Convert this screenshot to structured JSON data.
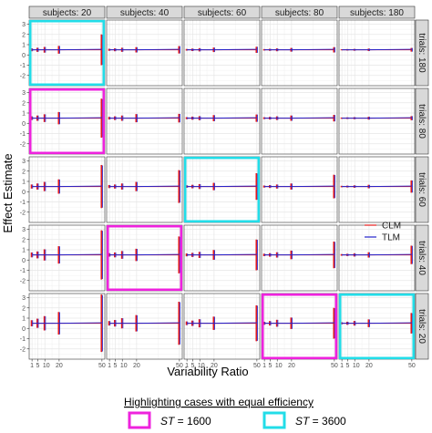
{
  "chart_data": {
    "type": "line",
    "panel_layout": "facet grid",
    "column_facets": [
      "subjects: 20",
      "subjects: 40",
      "subjects: 60",
      "subjects: 80",
      "subjects: 180"
    ],
    "row_facets": [
      "trials: 180",
      "trials: 80",
      "trials: 60",
      "trials: 40",
      "trials: 20"
    ],
    "xlabel": "Variability Ratio",
    "ylabel": "Effect Estimate",
    "x_ticks": [
      1,
      5,
      10,
      20,
      50
    ],
    "y_ticks": [
      -2,
      -1,
      0,
      1,
      2,
      3
    ],
    "xlim": [
      -1,
      52
    ],
    "ylim": [
      -3,
      3.4
    ],
    "x": [
      1,
      5,
      10,
      20,
      50
    ],
    "grid": true,
    "estimate": 0.5,
    "series": [
      {
        "name": "CLM",
        "color": "#e41a1c"
      },
      {
        "name": "TLM",
        "color": "#2222cc"
      }
    ],
    "interval_halfwidths": {
      "trials: 180": [
        [
          0.14,
          0.2,
          0.28,
          0.38,
          1.5
        ],
        [
          0.1,
          0.14,
          0.2,
          0.26,
          0.36
        ],
        [
          0.08,
          0.12,
          0.16,
          0.22,
          0.3
        ],
        [
          0.07,
          0.1,
          0.14,
          0.18,
          0.26
        ],
        [
          0.05,
          0.07,
          0.09,
          0.12,
          0.18
        ]
      ],
      "trials: 80": [
        [
          0.18,
          0.26,
          0.38,
          0.6,
          1.9
        ],
        [
          0.13,
          0.18,
          0.26,
          0.4,
          0.42
        ],
        [
          0.1,
          0.15,
          0.2,
          0.3,
          0.36
        ],
        [
          0.09,
          0.13,
          0.18,
          0.26,
          0.32
        ],
        [
          0.06,
          0.08,
          0.1,
          0.14,
          0.2
        ]
      ],
      "trials: 60": [
        [
          0.2,
          0.3,
          0.45,
          0.7,
          2.1
        ],
        [
          0.15,
          0.2,
          0.3,
          0.45,
          1.6
        ],
        [
          0.12,
          0.17,
          0.24,
          0.36,
          1.3
        ],
        [
          0.1,
          0.14,
          0.2,
          0.3,
          1.15
        ],
        [
          0.07,
          0.09,
          0.12,
          0.17,
          0.6
        ]
      ],
      "trials: 40": [
        [
          0.24,
          0.34,
          0.55,
          0.85,
          2.4
        ],
        [
          0.17,
          0.24,
          0.38,
          0.6,
          1.8
        ],
        [
          0.14,
          0.2,
          0.3,
          0.48,
          1.5
        ],
        [
          0.12,
          0.17,
          0.26,
          0.42,
          1.3
        ],
        [
          0.08,
          0.11,
          0.16,
          0.26,
          0.9
        ]
      ],
      "trials: 20": [
        [
          0.3,
          0.45,
          0.7,
          1.1,
          2.8
        ],
        [
          0.22,
          0.32,
          0.5,
          0.8,
          2.1
        ],
        [
          0.18,
          0.26,
          0.4,
          0.65,
          1.75
        ],
        [
          0.15,
          0.22,
          0.34,
          0.56,
          1.5
        ],
        [
          0.1,
          0.15,
          0.23,
          0.38,
          1.0
        ]
      ]
    },
    "highlights": [
      {
        "row": 0,
        "col": 0,
        "group": "ST = 3600"
      },
      {
        "row": 2,
        "col": 2,
        "group": "ST = 3600"
      },
      {
        "row": 4,
        "col": 4,
        "group": "ST = 3600"
      },
      {
        "row": 1,
        "col": 0,
        "group": "ST = 1600"
      },
      {
        "row": 3,
        "col": 1,
        "group": "ST = 1600"
      },
      {
        "row": 4,
        "col": 3,
        "group": "ST = 1600"
      }
    ],
    "highlight_legend": {
      "title": "Highlighting cases with equal efficiency",
      "items": [
        {
          "italic": "ST",
          "rest": " = 1600",
          "color": "#ee22dd"
        },
        {
          "italic": "ST",
          "rest": " = 3600",
          "color": "#22dde8"
        }
      ]
    }
  }
}
